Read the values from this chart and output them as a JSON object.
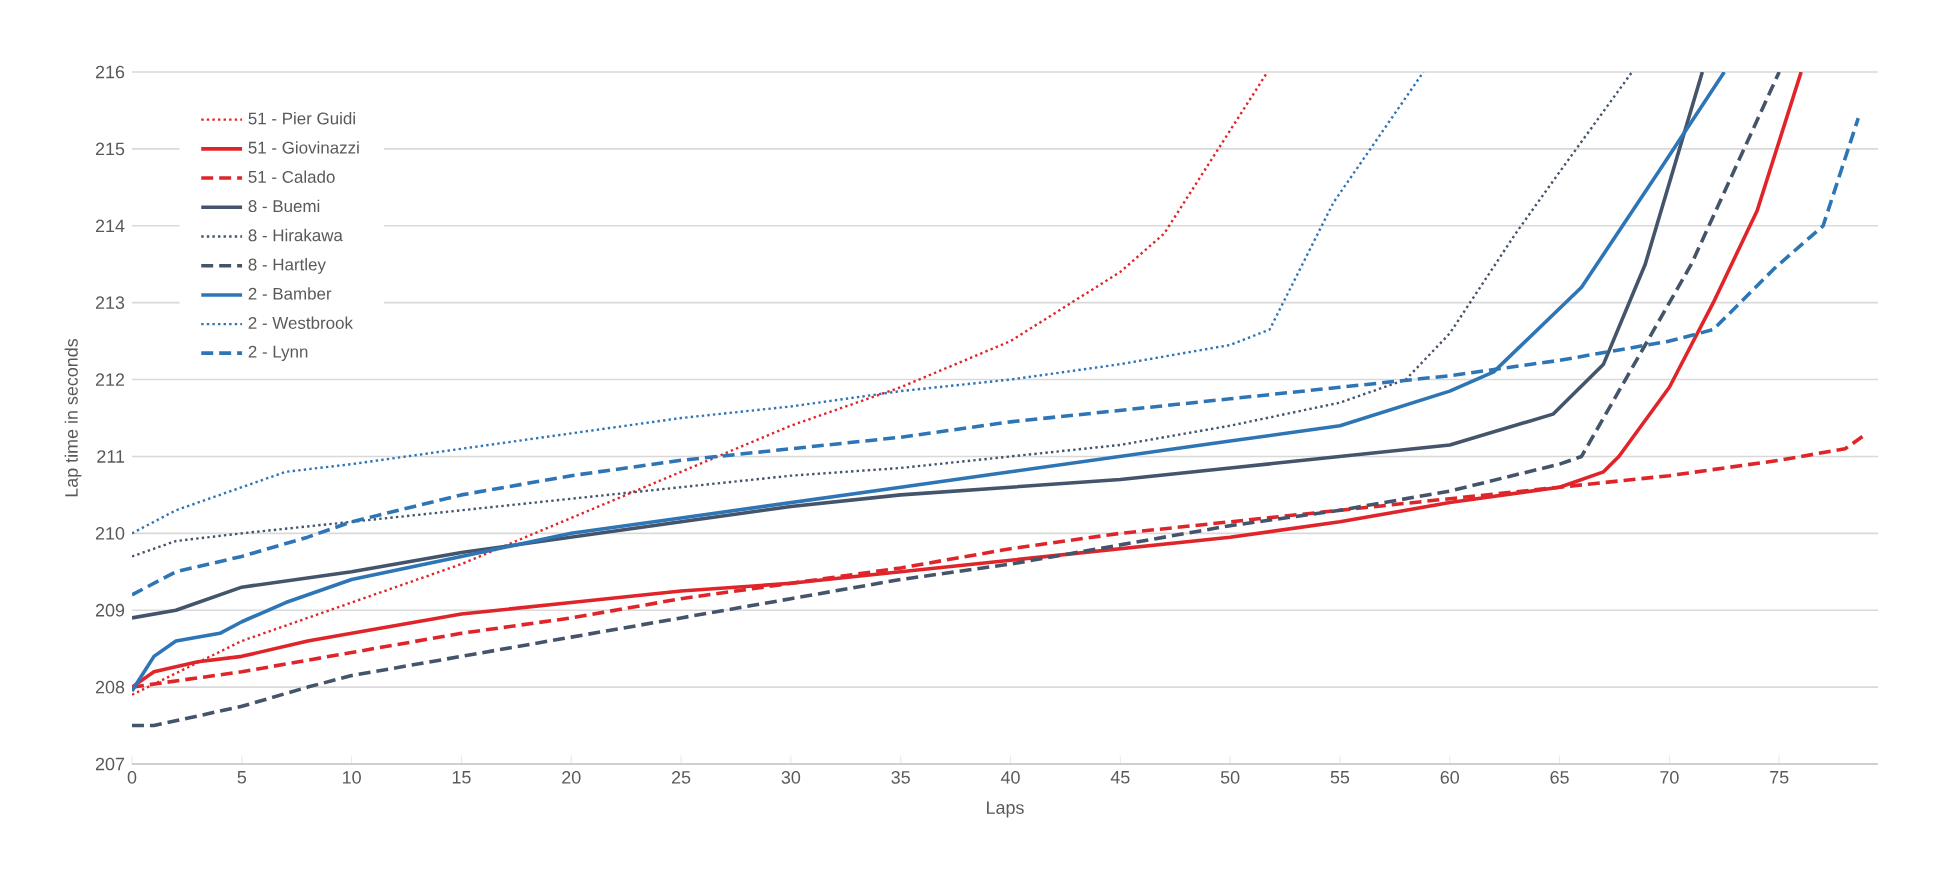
{
  "chart_data": {
    "type": "line",
    "xlabel": "Laps",
    "ylabel": "Lap time in seconds",
    "xlim": [
      0,
      79.5
    ],
    "ylim": [
      207,
      216
    ],
    "xticks": [
      0,
      5,
      10,
      15,
      20,
      25,
      30,
      35,
      40,
      45,
      50,
      55,
      60,
      65,
      70,
      75
    ],
    "yticks": [
      207,
      208,
      209,
      210,
      211,
      212,
      213,
      214,
      215,
      216
    ],
    "grid": "y",
    "legend": "top left",
    "series": [
      {
        "name": "51 - Pier Guidi",
        "color": "#e0252a",
        "line_style": "dotted",
        "x": [
          0,
          5,
          10,
          15,
          20,
          25,
          30,
          35,
          40,
          45,
          47,
          51.7
        ],
        "values": [
          207.9,
          208.6,
          209.1,
          209.6,
          210.2,
          210.8,
          211.4,
          211.9,
          212.5,
          213.4,
          213.9,
          216
        ]
      },
      {
        "name": "51 - Giovinazzi",
        "color": "#e0252a",
        "line_style": "solid",
        "x": [
          0,
          1,
          3,
          5,
          8,
          10,
          15,
          20,
          25,
          30,
          35,
          40,
          45,
          50,
          55,
          60,
          65,
          67,
          67.7,
          70,
          72,
          74,
          76
        ],
        "values": [
          208,
          208.2,
          208.33,
          208.4,
          208.6,
          208.7,
          208.95,
          209.1,
          209.25,
          209.35,
          209.5,
          209.65,
          209.8,
          209.95,
          210.15,
          210.4,
          210.6,
          210.8,
          211.0,
          211.9,
          213.0,
          214.2,
          216
        ]
      },
      {
        "name": "51 - Calado",
        "color": "#e0252a",
        "line_style": "dashed",
        "x": [
          0,
          5,
          10,
          15,
          20,
          25,
          30,
          35,
          40,
          45,
          50,
          55,
          60,
          65,
          70,
          75,
          78,
          79
        ],
        "values": [
          208,
          208.2,
          208.45,
          208.7,
          208.9,
          209.15,
          209.35,
          209.55,
          209.8,
          210.0,
          210.15,
          210.3,
          210.45,
          210.6,
          210.75,
          210.95,
          211.1,
          211.3
        ]
      },
      {
        "name": "8 - Buemi",
        "color": "#44546a",
        "line_style": "solid",
        "x": [
          0,
          2,
          5,
          10,
          15,
          20,
          25,
          30,
          35,
          40,
          45,
          50,
          55,
          60,
          64.7,
          67,
          68.9,
          71.5
        ],
        "values": [
          208.9,
          209.0,
          209.3,
          209.5,
          209.75,
          209.95,
          210.15,
          210.35,
          210.5,
          210.6,
          210.7,
          210.85,
          211.0,
          211.15,
          211.55,
          212.2,
          213.5,
          216
        ]
      },
      {
        "name": "8 - Hirakawa",
        "color": "#44546a",
        "line_style": "dotted",
        "x": [
          0,
          2,
          5,
          10,
          15,
          20,
          25,
          30,
          35,
          40,
          45,
          50,
          55,
          58,
          60,
          63,
          65,
          68.3
        ],
        "values": [
          209.7,
          209.9,
          210.0,
          210.15,
          210.3,
          210.45,
          210.6,
          210.75,
          210.85,
          211.0,
          211.15,
          211.4,
          211.7,
          212.0,
          212.6,
          213.9,
          214.7,
          216
        ]
      },
      {
        "name": "8 - Hartley",
        "color": "#44546a",
        "line_style": "dashed",
        "x": [
          0,
          1,
          5,
          8,
          10,
          15,
          20,
          25,
          30,
          35,
          40,
          45,
          50,
          55,
          60,
          65,
          66,
          68,
          71,
          75
        ],
        "values": [
          207.5,
          207.5,
          207.75,
          208.0,
          208.15,
          208.4,
          208.65,
          208.9,
          209.15,
          209.4,
          209.6,
          209.85,
          210.1,
          210.3,
          210.55,
          210.9,
          211.0,
          212.0,
          213.5,
          216
        ]
      },
      {
        "name": "2 - Bamber",
        "color": "#2e75b6",
        "line_style": "solid",
        "x": [
          0,
          1,
          2,
          4,
          5,
          7,
          10,
          15,
          20,
          25,
          30,
          35,
          40,
          45,
          50,
          55,
          60,
          62,
          66,
          69.5,
          72.5
        ],
        "values": [
          207.95,
          208.4,
          208.6,
          208.7,
          208.85,
          209.1,
          209.4,
          209.7,
          210.0,
          210.2,
          210.4,
          210.6,
          210.8,
          211.0,
          211.2,
          211.4,
          211.85,
          212.1,
          213.2,
          214.7,
          216
        ]
      },
      {
        "name": "2 - Westbrook",
        "color": "#2e75b6",
        "line_style": "dotted",
        "x": [
          0,
          2,
          5,
          7,
          10,
          15,
          20,
          25,
          30,
          35,
          40,
          45,
          50,
          51.8,
          54.7,
          58.8
        ],
        "values": [
          210.0,
          210.3,
          210.6,
          210.8,
          210.9,
          211.1,
          211.3,
          211.5,
          211.65,
          211.85,
          212.0,
          212.2,
          212.45,
          212.65,
          214.3,
          216
        ]
      },
      {
        "name": "2 - Lynn",
        "color": "#2e75b6",
        "line_style": "dashed",
        "x": [
          0,
          2,
          5,
          8,
          10,
          15,
          20,
          25,
          30,
          35,
          40,
          45,
          50,
          55,
          60,
          65,
          70,
          72,
          74.8,
          77,
          78.6
        ],
        "values": [
          209.2,
          209.5,
          209.7,
          209.95,
          210.15,
          210.5,
          210.75,
          210.95,
          211.1,
          211.25,
          211.45,
          211.6,
          211.75,
          211.9,
          212.05,
          212.25,
          212.5,
          212.65,
          213.45,
          214.0,
          215.4
        ]
      }
    ]
  }
}
